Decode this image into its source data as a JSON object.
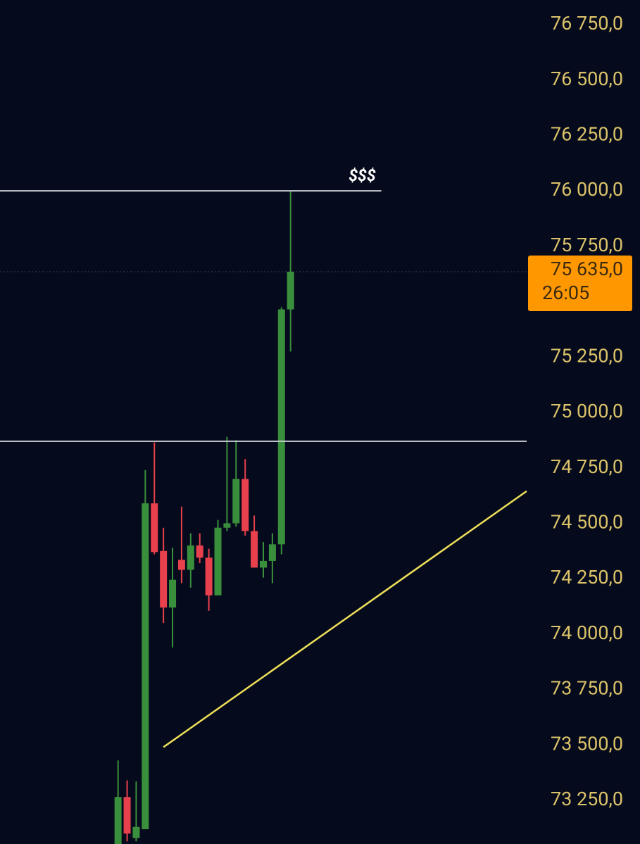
{
  "chart_data": {
    "type": "candlestick",
    "up_color": "#3a8f3c",
    "down_color": "#e8404c",
    "candles": [
      {
        "open": 73050,
        "high": 73430,
        "low": 73050,
        "close": 73265
      },
      {
        "open": 73265,
        "high": 73340,
        "low": 73065,
        "close": 73100
      },
      {
        "open": 73080,
        "high": 73335,
        "low": 73065,
        "close": 73130
      },
      {
        "open": 73120,
        "high": 74740,
        "low": 73120,
        "close": 74590
      },
      {
        "open": 74590,
        "high": 74865,
        "low": 74360,
        "close": 74370
      },
      {
        "open": 74375,
        "high": 74480,
        "low": 74050,
        "close": 74120
      },
      {
        "open": 74120,
        "high": 74390,
        "low": 73940,
        "close": 74245
      },
      {
        "open": 74335,
        "high": 74575,
        "low": 74230,
        "close": 74290
      },
      {
        "open": 74290,
        "high": 74455,
        "low": 74210,
        "close": 74400
      },
      {
        "open": 74400,
        "high": 74455,
        "low": 74320,
        "close": 74345
      },
      {
        "open": 74345,
        "high": 74385,
        "low": 74105,
        "close": 74175
      },
      {
        "open": 74175,
        "high": 74515,
        "low": 74175,
        "close": 74480
      },
      {
        "open": 74480,
        "high": 74890,
        "low": 74465,
        "close": 74500
      },
      {
        "open": 74500,
        "high": 74875,
        "low": 74485,
        "close": 74700
      },
      {
        "open": 74700,
        "high": 74790,
        "low": 74445,
        "close": 74465
      },
      {
        "open": 74465,
        "high": 74535,
        "low": 74300,
        "close": 74300
      },
      {
        "open": 74300,
        "high": 74415,
        "low": 74255,
        "close": 74330
      },
      {
        "open": 74330,
        "high": 74455,
        "low": 74230,
        "close": 74405
      },
      {
        "open": 74405,
        "high": 75475,
        "low": 74360,
        "close": 75465
      },
      {
        "open": 75465,
        "high": 76000,
        "low": 75275,
        "close": 75635
      }
    ],
    "xlim": [
      -13,
      45
    ],
    "ylim": [
      73053,
      76861
    ],
    "yticks": [
      {
        "value": 76750,
        "label": "76 750,0"
      },
      {
        "value": 76500,
        "label": "76 500,0"
      },
      {
        "value": 76250,
        "label": "76 250,0"
      },
      {
        "value": 76000,
        "label": "76 000,0"
      },
      {
        "value": 75750,
        "label": "75 750,0"
      },
      {
        "value": 75250,
        "label": "75 250,0"
      },
      {
        "value": 75000,
        "label": "75 000,0"
      },
      {
        "value": 74750,
        "label": "74 750,0"
      },
      {
        "value": 74500,
        "label": "74 500,0"
      },
      {
        "value": 74250,
        "label": "74 250,0"
      },
      {
        "value": 74000,
        "label": "74 000,0"
      },
      {
        "value": 73750,
        "label": "73 750,0"
      },
      {
        "value": 73500,
        "label": "73 500,0"
      },
      {
        "value": 73250,
        "label": "73 250,0"
      }
    ],
    "current_price": {
      "value": 75635,
      "label": "75 635,0",
      "timer": "26:05",
      "color": "#ff9800"
    },
    "levels": [
      {
        "value": 76000,
        "x_end": 29,
        "label": "$$$",
        "color": "#c8ccd4"
      },
      {
        "value": 74870,
        "x_end": 45,
        "color": "#c8ccd4"
      }
    ],
    "trendline": {
      "x": [
        5,
        45
      ],
      "y": [
        73490,
        74645
      ],
      "color": "#efe05a"
    }
  }
}
